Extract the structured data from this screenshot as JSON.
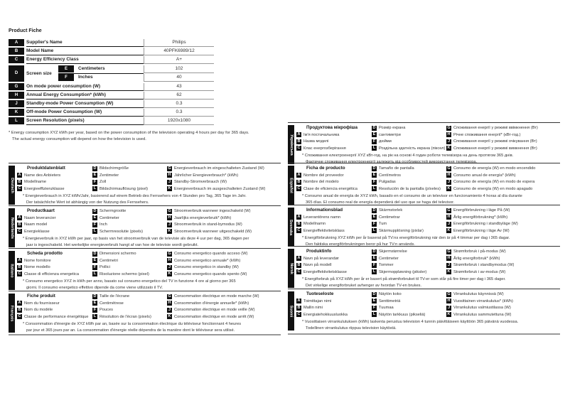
{
  "title": "Product Fiche",
  "main_table": {
    "rows": [
      {
        "key": "A",
        "label": "Supplier's Name",
        "value": "Philips"
      },
      {
        "key": "B",
        "label": "Model Name",
        "value": "40PFK6989/12"
      },
      {
        "key": "C",
        "label": "Energy Efficiency Class",
        "value": "A+"
      },
      {
        "key": "D",
        "label": "Screen size",
        "sub": [
          {
            "key": "E",
            "label": "Centimeters",
            "value": "102"
          },
          {
            "key": "F",
            "label": "Inches",
            "value": "40"
          }
        ]
      },
      {
        "key": "G",
        "label": "On mode power consumption (W)",
        "value": "43"
      },
      {
        "key": "H",
        "label": "Annual Energy Consumption* (kWh)",
        "value": "62"
      },
      {
        "key": "J",
        "label": "Standby-mode Power Consumption (W)",
        "value": "0.3"
      },
      {
        "key": "K",
        "label": "Off-mode Power Consumption (W)",
        "value": "0.3"
      },
      {
        "key": "L",
        "label": "Screen Resolution (pixels)",
        "value": "1920x1080"
      }
    ],
    "footnote": [
      "* Energy consumption XYZ kWh per year, based on the power consumption of the television operating 4 hours per day for 365 days.",
      "The actual energy consumption will depend on how the television is used."
    ]
  },
  "languages": [
    {
      "name": "Deutsch",
      "title": "Produktdatenblatt",
      "A": "Name des Anbieters",
      "B": "Modellname",
      "C": "Energieeffizienzklasse",
      "D": "Bildschirmgröße",
      "E": "Zentimeter",
      "F": "Zoll",
      "L": "Bildschirmauflösung (pixel)",
      "G": "Energieverbrauch im eingeschalteten Zustand (W)",
      "H": "Jährlicher Energieverbrauch* (kWh)",
      "J": "Standby-Stromverbrauch (W)",
      "K": "Energieverbrauch im ausgeschalteten Zustand (W)",
      "footnote": [
        "* Energieverbrauch in XYZ kWh/Jahr, basierend auf einem Betrieb des Fernsehers von 4 Stunden pro Tag, 365 Tage im Jahr.",
        "Der tatsächliche Wert ist abhängig von der Nutzung des Fernsehers."
      ]
    },
    {
      "name": "Nederlands",
      "title": "Productkaart",
      "A": "Naam leverancier",
      "B": "Naam model",
      "C": "Energieklasse",
      "D": "Schermgrootte",
      "E": "Centimeter",
      "F": "Inch",
      "L": "Schermresolutie (pixels)",
      "G": "Stroomverbruik wanneer ingeschakeld (W)",
      "H": "Jaarlijks energieverbruik* (kWh)",
      "J": "Stroomverbruik in stand-bymodus (W)",
      "K": "Stroomverbruik wanneer uitgeschakeld (W)",
      "footnote": [
        "* Energieverbruik in XYZ kWh per jaar, op basis van het stroomverbruik van de televisie als deze 4 uur per dag, 365 dagen per",
        "jaar is ingeschakeld. Het werkelijke energieverbruik hangt af van hoe de televisie wordt gebruikt."
      ]
    },
    {
      "name": "Italiano",
      "title": "Scheda prodotto",
      "A": "Nome fornitore",
      "B": "Nome modello",
      "C": "Classe di efficienza energetica",
      "D": "Dimensioni schermo",
      "E": "Centimetri",
      "F": "Pollici",
      "L": "Risoluzione schermo (pixel)",
      "G": "Consumo energetico quando acceso (W)",
      "H": "Consumo energetico annuale* (kWh)",
      "J": "Consumo energetico in standby (W)",
      "K": "Consumo energetico quando spento (W)",
      "footnote": [
        "* Consumo energetico XYZ in kWh per anno, basato sul consumo energetico del TV in funzione 4 ore al giorno per 365",
        "giorni. Il consumo energetico effettivo dipende da come viene utilizzato il TV."
      ]
    },
    {
      "name": "Français",
      "title": "Fiche produit",
      "A": "Nom du fournisseur",
      "B": "Nom du modèle",
      "C": "Classe de performance énergétique",
      "D": "Taille de l'écrane",
      "E": "Centimètrese",
      "F": "Pouces",
      "L": "Résolution de l'écran (pixels)",
      "G": "Consommation électrique en mode marche (W)",
      "H": "Consommation d'énergie annuelle* (kWh)",
      "J": "Consommation électrique en mode veille (W)",
      "K": "Consommation électrique en mode arrêt (W)",
      "footnote": [
        "* Consommation d'énergie de XYZ kWh par an, basée sur la consommation électrique du téléviseur fonctionnant 4 heures",
        "par jour et 365 jours par an. La consommation d'énergie réelle dépendra de la manière dont le téléviseur sera utilisé."
      ]
    },
    {
      "name": "Українська",
      "title": "Продуктова мікрофіша",
      "A": "Ім'я постачальника",
      "B": "Назва моделі",
      "C": "Клас енергозберігання",
      "D": "Розмір екрана",
      "E": "сантиметри",
      "F": "дюйми",
      "L": "Роздільна здатність екрана (піксел)",
      "G": "Споживання енергії у режимі ввімкнення (Вт)",
      "H": "Річне споживання енергії* (кВт-год.)",
      "J": "Споживання енергії у режимі очікування (Вт)",
      "K": "Споживання енергії у режимі вимкнення (Вт)",
      "footnote": [
        "* Споживання електроенергії XYZ кВт-год. на рік на основі 4 годин роботи телевізора на день протягом 365 днів.",
        "Фактичне споживання електроенергії залежить від особливостей використання телевізора."
      ]
    },
    {
      "name": "Español",
      "title": "Ficha de producto",
      "A": "Nombre del proveedor",
      "B": "Nombre del modelo",
      "C": "Clase de eficiencia energética",
      "D": "Tamaño de pantalla",
      "E": "Centímetros",
      "F": "Pulgadas",
      "L": "Resolución de la pantalla (píxeles)",
      "G": "Consumo de energía (W) en modo encendido",
      "H": "Consumo anual de energía* (kWh)",
      "J": "Consumo de energía (W) en modo de espera",
      "K": "Consumo de energía (W) en modo apagado",
      "footnote": [
        "* Consumo anual de energía de XYZ kWh, basado en el consumo de un televisor en funcionamiento 4 horas al día durante",
        "365 días. El consumo real de energía dependerá del uso que se haga del televisor."
      ]
    },
    {
      "name": "Svenska",
      "title": "Informationsblad",
      "A": "Leverantörens namn",
      "B": "Modellnamn",
      "C": "Energieffektivitetsklass",
      "D": "Skärmstorlek",
      "E": "Centimetrar",
      "F": "Tum",
      "L": "Skärmupplösning (pixlar)",
      "G": "Energiförbrukning i läge På (W)",
      "H": "Årlig energiförbrukning* (kWh)",
      "J": "Energiförbrukning i standbyläge (W)",
      "K": "Energiförbrukning i läge Av (W)",
      "footnote": [
        "* Energiförbrukning XYZ kWh per år baserat på TV:ns energiförbrukning när den är på 4 timmar per dag i 365 dagar.",
        "Den faktiska energiförbrukningen beror på hur TV:n används."
      ]
    },
    {
      "name": "Norsk",
      "title": "Produktinfo",
      "A": "Navn på leverandør",
      "B": "Navn på modell",
      "C": "Energieffektivitetsklasse",
      "D": "Skjermstørrelse",
      "E": "Centimeter",
      "F": "Tommer",
      "L": "Skjermoppløsning (piksler)",
      "G": "Strømforbruk i på-modus (W)",
      "H": "Årlig energiforbruk* (kWh)",
      "J": "Strømforbruk i standbymodus (W)",
      "K": "Strømforbruk i av-modus (W)",
      "footnote": [
        "* Energiforbruk på XYZ kWh per år er basert på strømforbruket til TV-er som står på fire timer per dag i 365 dager.",
        "Det virkelige energiforbruket avhenger av hvordan TV-en brukes."
      ]
    },
    {
      "name": "Suomi",
      "title": "Tuoteseloste",
      "A": "Toimittajan nimi",
      "B": "Mallin nimi",
      "C": "Energiatehokkuusluokka",
      "D": "Näytön koko",
      "E": "Senttimetriä",
      "F": "Tuumaa",
      "L": "Näytön tarkkuus (pikseliä)",
      "G": "Virrankulutus käynnissä (W)",
      "H": "Vuosittainen virrankulutus* (kWh)",
      "J": "Virrankulutus valmiustilassa (W)",
      "K": "Virrankulutus sammutettuna (W)",
      "footnote": [
        "* Vuosittaisen virrankulutuksen (kWh) laskenta perustuu television 4 tunnin päivittäiseen käyttöön 365 päivänä vuodessa.",
        "Todellinen virrankulutus riippuu television käytöstä."
      ]
    }
  ]
}
